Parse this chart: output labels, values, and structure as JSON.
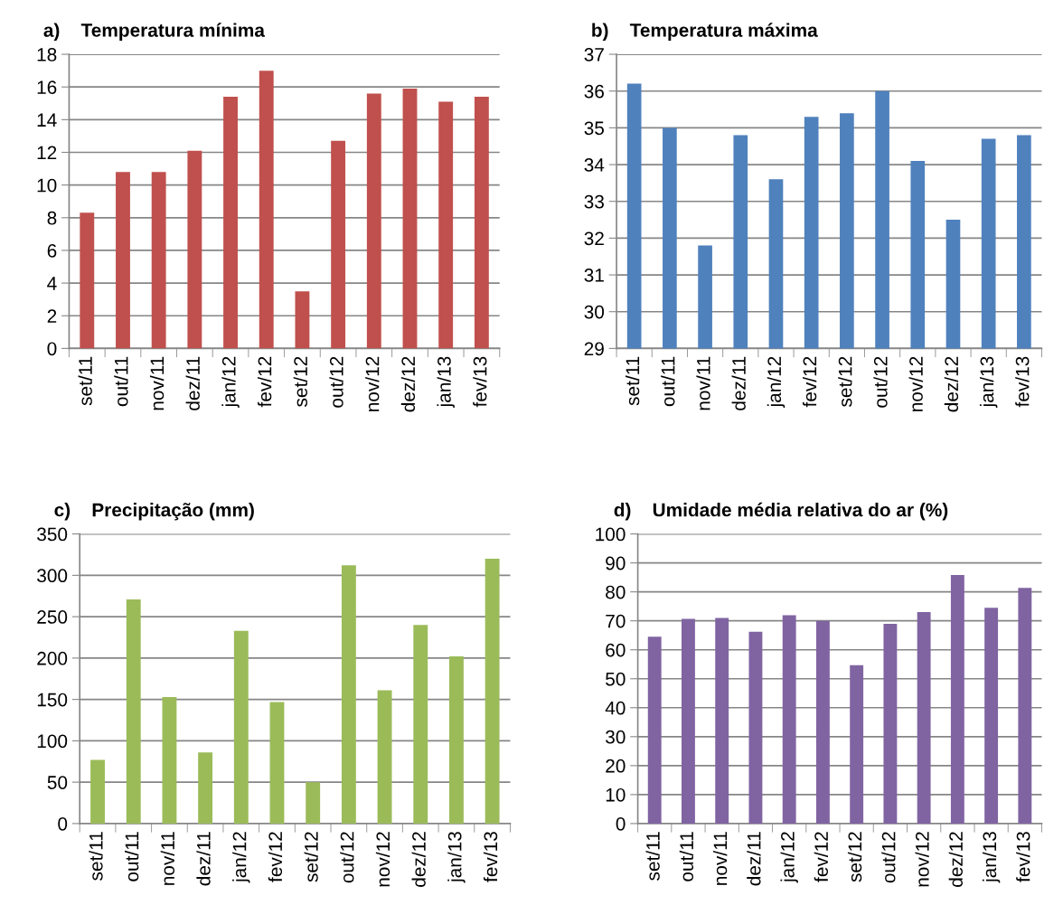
{
  "chart_data": [
    {
      "type": "bar",
      "title": "a)    Temperatura mínima",
      "categories": [
        "set/11",
        "out/11",
        "nov/11",
        "dez/11",
        "jan/12",
        "fev/12",
        "set/12",
        "out/12",
        "nov/12",
        "dez/12",
        "jan/13",
        "fev/13"
      ],
      "values": [
        8.3,
        10.8,
        10.8,
        12.1,
        15.4,
        17.0,
        3.5,
        12.7,
        15.6,
        15.9,
        15.1,
        15.4
      ],
      "color": "#c0504d",
      "ylim": [
        0,
        18
      ],
      "yticks": [
        0,
        2,
        4,
        6,
        8,
        10,
        12,
        14,
        16,
        18
      ],
      "grid": "y"
    },
    {
      "type": "bar",
      "title": "b)    Temperatura máxima",
      "categories": [
        "set/11",
        "out/11",
        "nov/11",
        "dez/11",
        "jan/12",
        "fev/12",
        "set/12",
        "out/12",
        "nov/12",
        "dez/12",
        "jan/13",
        "fev/13"
      ],
      "values": [
        36.2,
        35.0,
        31.8,
        34.8,
        33.6,
        35.3,
        35.4,
        36.0,
        34.1,
        32.5,
        34.7,
        34.8
      ],
      "color": "#4f81bd",
      "ylim": [
        29,
        37
      ],
      "yticks": [
        29,
        30,
        31,
        32,
        33,
        34,
        35,
        36,
        37
      ],
      "grid": "y"
    },
    {
      "type": "bar",
      "title": "c)    Precipitação (mm)",
      "categories": [
        "set/11",
        "out/11",
        "nov/11",
        "dez/11",
        "jan/12",
        "fev/12",
        "set/12",
        "out/12",
        "nov/12",
        "dez/12",
        "jan/13",
        "fev/13"
      ],
      "values": [
        77,
        271,
        153,
        86,
        233,
        147,
        50,
        312,
        161,
        240,
        202,
        320
      ],
      "color": "#9bbb59",
      "ylim": [
        0,
        350
      ],
      "yticks": [
        0,
        50,
        100,
        150,
        200,
        250,
        300,
        350
      ],
      "grid": "y"
    },
    {
      "type": "bar",
      "title": "d)    Umidade média relativa do ar (%)",
      "categories": [
        "set/11",
        "out/11",
        "nov/11",
        "dez/11",
        "jan/12",
        "fev/12",
        "set/12",
        "out/12",
        "nov/12",
        "dez/12",
        "jan/13",
        "fev/13"
      ],
      "values": [
        64.5,
        70.7,
        71.0,
        66.2,
        71.9,
        70.0,
        54.7,
        69.0,
        73.0,
        85.8,
        74.5,
        81.4
      ],
      "color": "#8064a2",
      "ylim": [
        0,
        100
      ],
      "yticks": [
        0,
        10,
        20,
        30,
        40,
        50,
        60,
        70,
        80,
        90,
        100
      ],
      "grid": "y"
    }
  ]
}
